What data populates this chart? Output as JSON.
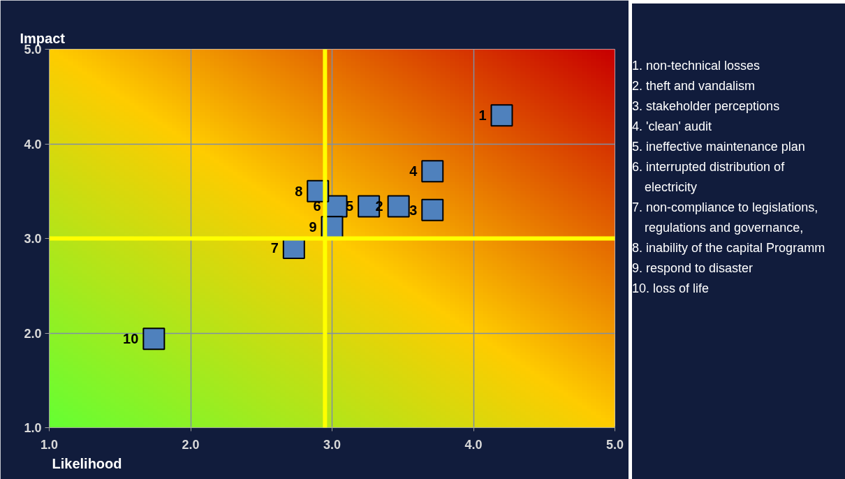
{
  "chart_data": {
    "type": "scatter",
    "xlabel": "Likelihood",
    "ylabel": "Impact",
    "x": [
      4.2,
      3.47,
      3.71,
      3.71,
      3.26,
      3.03,
      2.73,
      2.9,
      3.0,
      1.74
    ],
    "series": [
      {
        "color": "#4f81bd",
        "values": [
          4.3,
          3.34,
          3.3,
          3.71,
          3.34,
          3.34,
          2.9,
          3.5,
          3.12,
          1.94
        ]
      }
    ],
    "marker": "square",
    "grid": true,
    "xlim": [
      1,
      5
    ],
    "ylim": [
      1,
      5
    ],
    "xticks": [
      {
        "value": 1,
        "label": "1.0"
      },
      {
        "value": 2,
        "label": "2.0"
      },
      {
        "value": 3,
        "label": "3.0"
      },
      {
        "value": 4,
        "label": "4.0"
      },
      {
        "value": 5,
        "label": "5.0"
      }
    ],
    "yticks": [
      {
        "value": 1,
        "label": "1.0"
      },
      {
        "value": 2,
        "label": "2.0"
      },
      {
        "value": 3,
        "label": "3.0"
      },
      {
        "value": 4,
        "label": "4.0"
      },
      {
        "value": 5,
        "label": "5.0"
      }
    ],
    "ref_lines": [
      {
        "axis": "x",
        "value": 2.95,
        "color": "#ffff00"
      },
      {
        "axis": "y",
        "value": 3.0,
        "color": "#ffff00"
      }
    ],
    "annotations": [
      {
        "text": "1",
        "x": 4.2,
        "y": 4.3
      },
      {
        "text": "2",
        "x": 3.47,
        "y": 3.34
      },
      {
        "text": "3",
        "x": 3.71,
        "y": 3.3
      },
      {
        "text": "4",
        "x": 3.71,
        "y": 3.71
      },
      {
        "text": "5",
        "x": 3.26,
        "y": 3.34
      },
      {
        "text": "6",
        "x": 3.03,
        "y": 3.34
      },
      {
        "text": "7",
        "x": 2.73,
        "y": 2.9
      },
      {
        "text": "8",
        "x": 2.9,
        "y": 3.5
      },
      {
        "text": "9",
        "x": 3.0,
        "y": 3.12
      },
      {
        "text": "10",
        "x": 1.74,
        "y": 1.94
      },
      "1. non-technical losses",
      "2. theft and vandalism",
      "3. stakeholder perceptions",
      "4. 'clean' audit",
      "5. ineffective maintenance plan",
      "6. interrupted distribution of electricity",
      "7. non-compliance to legislations, regulations and governance,",
      "8. inability of the capital Programm",
      "9. respond to disaster",
      "10. loss of life"
    ]
  }
}
